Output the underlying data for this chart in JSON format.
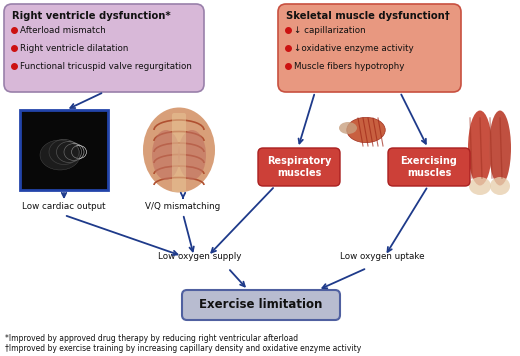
{
  "background_color": "#ffffff",
  "arrow_color": "#1e3a8a",
  "box_left_title": "Right ventricle dysfunction*",
  "box_left_bullets": [
    "Afterload mismatch",
    "Right ventricle dilatation",
    "Functional tricuspid valve regurgitation"
  ],
  "box_left_bg": "#d8b8d8",
  "box_left_border": "#9980aa",
  "box_right_title": "Skeletal muscle dysfunction†",
  "box_right_bullets": [
    "↓ capillarization",
    "↓oxidative enzyme activity",
    "Muscle fibers hypotrophy"
  ],
  "box_right_bg": "#e89880",
  "box_right_border": "#c85040",
  "box_resp_label": "Respiratory\nmuscles",
  "box_resp_bg": "#cc4038",
  "box_resp_border": "#aa2020",
  "box_exerc_label": "Exercising\nmuscles",
  "box_exerc_bg": "#cc4038",
  "box_exerc_border": "#aa2020",
  "label_low_cardiac": "Low cardiac output",
  "label_vq": "V/Q mismatching",
  "label_low_oxy_supply": "Low oxygen supply",
  "label_low_oxy_uptake": "Low oxygen uptake",
  "label_exercise_limit": "Exercise limitation",
  "exercise_box_bg": "#b8bcd0",
  "exercise_box_border": "#5060a0",
  "footnote1": "*Improved by approved drug therapy by reducing right ventricular afterload",
  "footnote2": "†Improved by exercise training by increasing capillary density and oxidative enzyme activity",
  "bullet_color": "#cc1111"
}
